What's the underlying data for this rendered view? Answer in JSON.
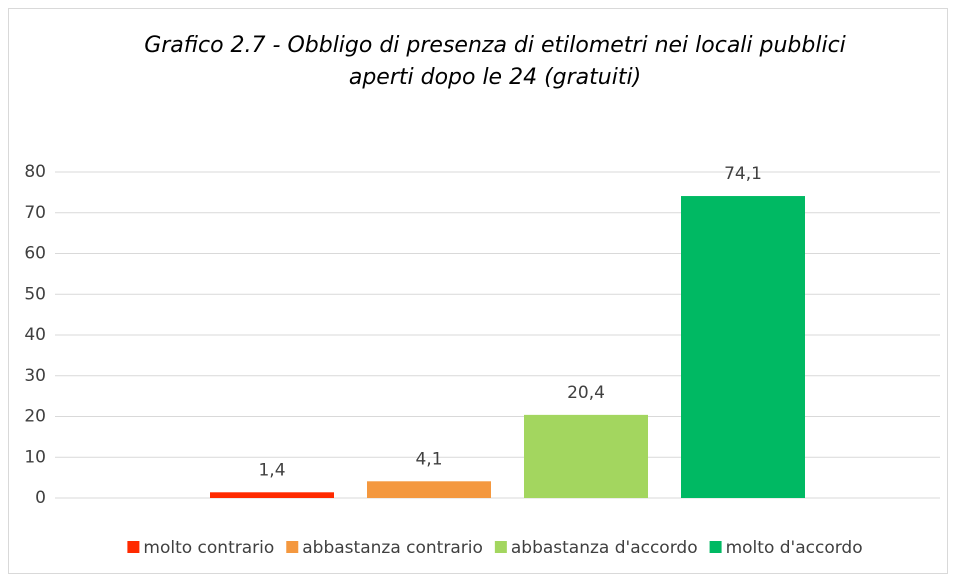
{
  "chart_data": {
    "type": "bar",
    "title": [
      "Grafico 2.7 - Obbligo di presenza di etilometri nei locali pubblici",
      "aperti dopo le 24 (gratuiti)"
    ],
    "categories": [
      null
    ],
    "series": [
      {
        "name": "molto contrario",
        "color": "#ff2a00",
        "values": [
          1.4
        ],
        "value_labels": [
          "1,4"
        ]
      },
      {
        "name": "abbastanza contrario",
        "color": "#f4983f",
        "values": [
          4.1
        ],
        "value_labels": [
          "4,1"
        ]
      },
      {
        "name": "abbastanza d'accordo",
        "color": "#a3d65f",
        "values": [
          20.4
        ],
        "value_labels": [
          "20,4"
        ]
      },
      {
        "name": "molto d'accordo",
        "color": "#00b963",
        "values": [
          74.1
        ],
        "value_labels": [
          "74,1"
        ]
      }
    ],
    "ylim": [
      0,
      80
    ],
    "yticks": [
      0,
      10,
      20,
      30,
      40,
      50,
      60,
      70,
      80
    ],
    "grid": true,
    "legend": "bottom"
  }
}
